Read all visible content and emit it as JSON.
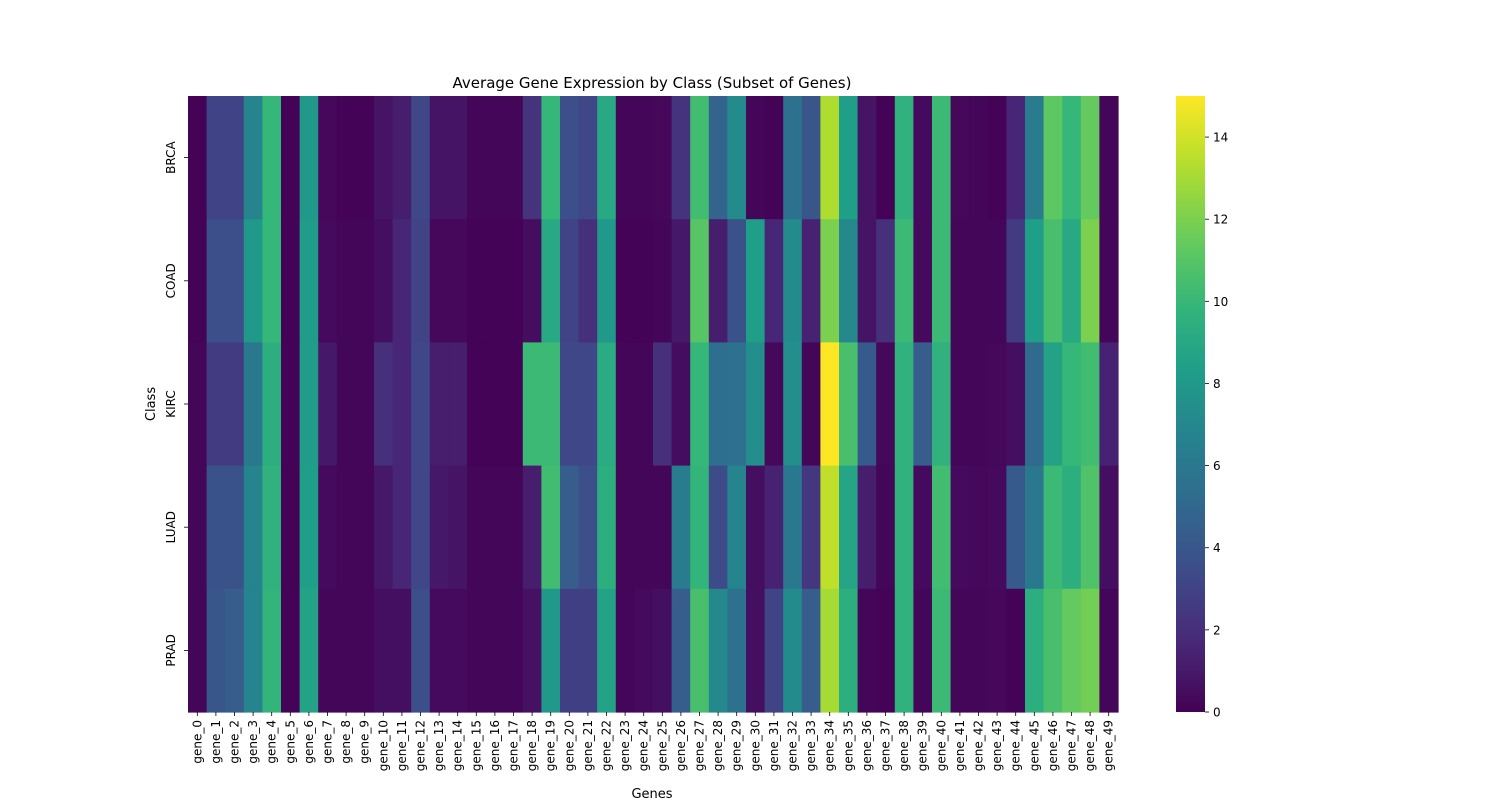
{
  "chart_data": {
    "type": "heatmap",
    "title": "Average Gene Expression by Class (Subset of Genes)",
    "xlabel": "Genes",
    "ylabel": "Class",
    "colormap": "viridis",
    "colorbar": {
      "min": 0,
      "max": 15,
      "ticks": [
        0,
        2,
        4,
        6,
        8,
        10,
        12,
        14
      ]
    },
    "x": [
      "gene_0",
      "gene_1",
      "gene_2",
      "gene_3",
      "gene_4",
      "gene_5",
      "gene_6",
      "gene_7",
      "gene_8",
      "gene_9",
      "gene_10",
      "gene_11",
      "gene_12",
      "gene_13",
      "gene_14",
      "gene_15",
      "gene_16",
      "gene_17",
      "gene_18",
      "gene_19",
      "gene_20",
      "gene_21",
      "gene_22",
      "gene_23",
      "gene_24",
      "gene_25",
      "gene_26",
      "gene_27",
      "gene_28",
      "gene_29",
      "gene_30",
      "gene_31",
      "gene_32",
      "gene_33",
      "gene_34",
      "gene_35",
      "gene_36",
      "gene_37",
      "gene_38",
      "gene_39",
      "gene_40",
      "gene_41",
      "gene_42",
      "gene_43",
      "gene_44",
      "gene_45",
      "gene_46",
      "gene_47",
      "gene_48",
      "gene_49"
    ],
    "y": [
      "BRCA",
      "COAD",
      "KIRC",
      "LUAD",
      "PRAD"
    ],
    "values": [
      [
        0.1,
        3.0,
        3.0,
        6.8,
        10.0,
        0.1,
        8.0,
        0.3,
        0.1,
        0.1,
        0.8,
        1.2,
        3.2,
        0.8,
        0.8,
        0.2,
        0.2,
        0.2,
        2.2,
        10.0,
        3.6,
        3.2,
        9.0,
        0.2,
        0.2,
        0.3,
        2.2,
        10.4,
        4.8,
        7.2,
        0.2,
        0.1,
        5.6,
        4.0,
        13.2,
        8.4,
        0.8,
        0.1,
        9.6,
        0.4,
        10.2,
        0.3,
        0.2,
        0.1,
        1.6,
        6.2,
        11.2,
        10.0,
        11.4,
        0.2
      ],
      [
        0.1,
        3.6,
        3.6,
        8.0,
        10.0,
        0.1,
        8.2,
        0.4,
        0.2,
        0.2,
        0.6,
        1.6,
        3.0,
        0.3,
        0.3,
        0.1,
        0.1,
        0.1,
        0.5,
        9.0,
        3.0,
        2.0,
        8.0,
        0.1,
        0.1,
        0.2,
        1.0,
        11.0,
        1.2,
        3.8,
        8.4,
        1.6,
        7.2,
        1.4,
        12.0,
        7.0,
        0.8,
        2.0,
        10.2,
        0.4,
        10.2,
        0.2,
        0.2,
        0.2,
        2.6,
        8.4,
        10.6,
        9.0,
        12.0,
        0.2
      ],
      [
        0.2,
        2.6,
        2.6,
        6.0,
        9.4,
        0.1,
        8.2,
        1.0,
        0.2,
        0.2,
        2.0,
        1.6,
        3.2,
        1.2,
        1.2,
        0.1,
        0.1,
        0.1,
        10.2,
        10.2,
        3.2,
        3.2,
        9.2,
        0.2,
        0.2,
        2.0,
        0.5,
        10.0,
        5.4,
        5.6,
        7.4,
        0.3,
        7.4,
        0.2,
        15.0,
        10.6,
        4.2,
        0.3,
        9.6,
        4.4,
        9.6,
        0.2,
        0.2,
        0.3,
        0.6,
        5.2,
        8.6,
        10.0,
        10.4,
        1.4
      ],
      [
        0.2,
        3.8,
        3.8,
        6.8,
        9.6,
        0.1,
        8.4,
        0.4,
        0.2,
        0.2,
        1.0,
        1.6,
        3.2,
        1.0,
        0.8,
        0.2,
        0.2,
        0.2,
        1.2,
        10.4,
        4.4,
        3.6,
        9.4,
        0.2,
        0.2,
        0.2,
        6.2,
        9.8,
        3.4,
        6.8,
        0.6,
        1.4,
        6.0,
        2.4,
        13.6,
        8.8,
        1.2,
        0.2,
        9.6,
        0.4,
        10.4,
        0.4,
        0.3,
        0.4,
        4.2,
        6.0,
        10.2,
        9.4,
        10.8,
        0.6
      ],
      [
        0.2,
        4.0,
        4.4,
        6.8,
        9.8,
        0.1,
        8.6,
        0.2,
        0.2,
        0.2,
        0.6,
        0.6,
        3.6,
        0.4,
        0.4,
        0.2,
        0.2,
        0.2,
        0.7,
        8.0,
        2.8,
        2.8,
        8.6,
        0.2,
        0.4,
        0.6,
        4.4,
        10.6,
        7.0,
        5.6,
        0.6,
        3.0,
        7.2,
        4.4,
        13.0,
        9.4,
        0.2,
        0.1,
        9.6,
        0.2,
        10.2,
        0.2,
        0.2,
        0.3,
        0.1,
        9.4,
        10.6,
        11.4,
        11.8,
        0.2
      ]
    ]
  }
}
